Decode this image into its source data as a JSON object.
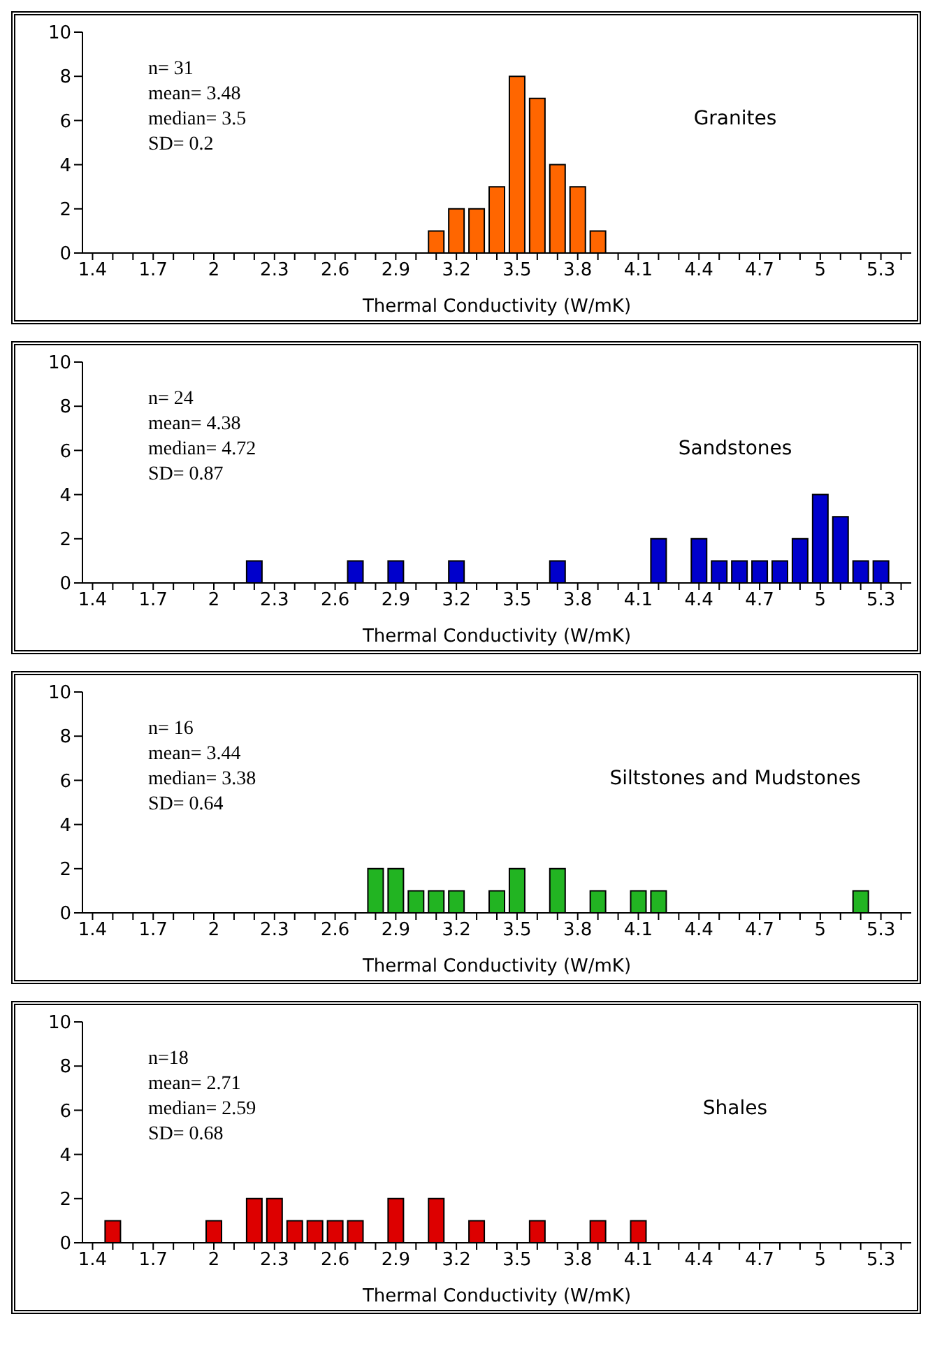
{
  "chart_data": [
    {
      "type": "bar",
      "title": "Granites",
      "xlabel": "Thermal Conductivity (W/mK)",
      "annotations": [
        "n= 31",
        "mean= 3.48",
        "median= 3.5",
        "SD= 0.2"
      ],
      "categories": [
        "1.4",
        null,
        null,
        "1.7",
        null,
        null,
        "2",
        null,
        null,
        "2.3",
        null,
        null,
        "2.6",
        null,
        null,
        "2.9",
        null,
        null,
        "3.2",
        null,
        null,
        "3.5",
        null,
        null,
        "3.8",
        null,
        null,
        "4.1",
        null,
        null,
        "4.4",
        null,
        null,
        "4.7",
        null,
        null,
        "5",
        null,
        null,
        "5.3",
        null
      ],
      "values": [
        0,
        0,
        0,
        0,
        0,
        0,
        0,
        0,
        0,
        0,
        0,
        0,
        0,
        0,
        0,
        0,
        0,
        1,
        2,
        2,
        3,
        8,
        7,
        4,
        3,
        1,
        0,
        0,
        0,
        0,
        0,
        0,
        0,
        0,
        0,
        0,
        0,
        0,
        0,
        0,
        0
      ],
      "color": "#ff6600",
      "ylim": [
        0,
        10
      ],
      "yticks": [
        0,
        2,
        4,
        6,
        8,
        10
      ],
      "grid": false
    },
    {
      "type": "bar",
      "title": "Sandstones",
      "xlabel": "Thermal Conductivity (W/mK)",
      "annotations": [
        "n= 24",
        "mean= 4.38",
        "median= 4.72",
        "SD= 0.87"
      ],
      "categories": [
        "1.4",
        null,
        null,
        "1.7",
        null,
        null,
        "2",
        null,
        null,
        "2.3",
        null,
        null,
        "2.6",
        null,
        null,
        "2.9",
        null,
        null,
        "3.2",
        null,
        null,
        "3.5",
        null,
        null,
        "3.8",
        null,
        null,
        "4.1",
        null,
        null,
        "4.4",
        null,
        null,
        "4.7",
        null,
        null,
        "5",
        null,
        null,
        "5.3",
        null
      ],
      "values": [
        0,
        0,
        0,
        0,
        0,
        0,
        0,
        0,
        1,
        0,
        0,
        0,
        0,
        1,
        0,
        1,
        0,
        0,
        1,
        0,
        0,
        0,
        0,
        1,
        0,
        0,
        0,
        0,
        2,
        0,
        2,
        1,
        1,
        1,
        1,
        2,
        4,
        3,
        1,
        1,
        0
      ],
      "color": "#0000cc",
      "ylim": [
        0,
        10
      ],
      "yticks": [
        0,
        2,
        4,
        6,
        8,
        10
      ],
      "grid": false
    },
    {
      "type": "bar",
      "title": "Siltstones and Mudstones",
      "xlabel": "Thermal Conductivity (W/mK)",
      "annotations": [
        "n= 16",
        "mean= 3.44",
        "median= 3.38",
        "SD= 0.64"
      ],
      "categories": [
        "1.4",
        null,
        null,
        "1.7",
        null,
        null,
        "2",
        null,
        null,
        "2.3",
        null,
        null,
        "2.6",
        null,
        null,
        "2.9",
        null,
        null,
        "3.2",
        null,
        null,
        "3.5",
        null,
        null,
        "3.8",
        null,
        null,
        "4.1",
        null,
        null,
        "4.4",
        null,
        null,
        "4.7",
        null,
        null,
        "5",
        null,
        null,
        "5.3",
        null
      ],
      "values": [
        0,
        0,
        0,
        0,
        0,
        0,
        0,
        0,
        0,
        0,
        0,
        0,
        0,
        0,
        2,
        2,
        1,
        1,
        1,
        0,
        1,
        2,
        0,
        2,
        0,
        1,
        0,
        1,
        1,
        0,
        0,
        0,
        0,
        0,
        0,
        0,
        0,
        0,
        1,
        0,
        0
      ],
      "color": "#22b422",
      "ylim": [
        0,
        10
      ],
      "yticks": [
        0,
        2,
        4,
        6,
        8,
        10
      ],
      "grid": false
    },
    {
      "type": "bar",
      "title": "Shales",
      "xlabel": "Thermal Conductivity (W/mK)",
      "annotations": [
        "n=18",
        "mean= 2.71",
        "median= 2.59",
        "SD= 0.68"
      ],
      "categories": [
        "1.4",
        null,
        null,
        "1.7",
        null,
        null,
        "2",
        null,
        null,
        "2.3",
        null,
        null,
        "2.6",
        null,
        null,
        "2.9",
        null,
        null,
        "3.2",
        null,
        null,
        "3.5",
        null,
        null,
        "3.8",
        null,
        null,
        "4.1",
        null,
        null,
        "4.4",
        null,
        null,
        "4.7",
        null,
        null,
        "5",
        null,
        null,
        "5.3",
        null
      ],
      "values": [
        0,
        1,
        0,
        0,
        0,
        0,
        1,
        0,
        2,
        2,
        1,
        1,
        1,
        1,
        0,
        2,
        0,
        2,
        0,
        1,
        0,
        0,
        1,
        0,
        0,
        1,
        0,
        1,
        0,
        0,
        0,
        0,
        0,
        0,
        0,
        0,
        0,
        0,
        0,
        0,
        0
      ],
      "color": "#dd0000",
      "ylim": [
        0,
        10
      ],
      "yticks": [
        0,
        2,
        4,
        6,
        8,
        10
      ],
      "grid": false
    }
  ]
}
